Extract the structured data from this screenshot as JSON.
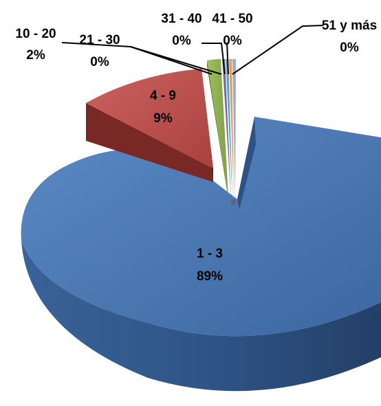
{
  "chart_data": {
    "type": "pie",
    "title": "",
    "categories": [
      "1 - 3",
      "4 - 9",
      "10 - 20",
      "21 - 30",
      "31 - 40",
      "41 - 50",
      "51 y más"
    ],
    "values": [
      89,
      9,
      2,
      0,
      0,
      0,
      0
    ],
    "labels": [
      "89%",
      "9%",
      "2%",
      "0%",
      "0%",
      "0%",
      "0%"
    ],
    "colors": [
      "#4F81BD",
      "#C0504D",
      "#9BBB59",
      "#8064A2",
      "#4BACC6",
      "#F79646",
      "#7F8FB8"
    ],
    "style": "3d-exploded",
    "legend": "none"
  }
}
